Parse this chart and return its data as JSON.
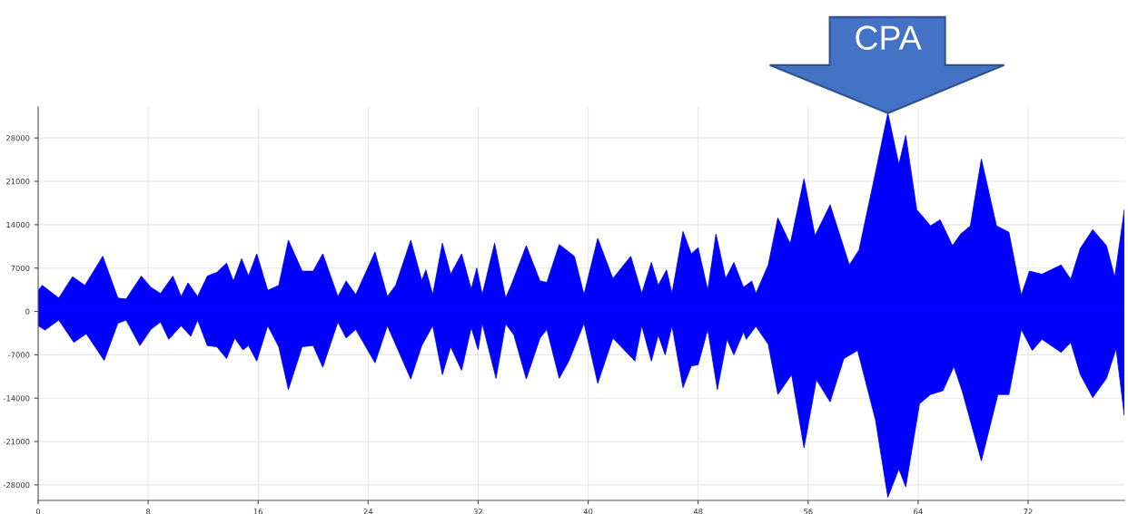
{
  "chart_data": {
    "type": "area",
    "series": [
      {
        "color": "#0000ff",
        "x": [
          0,
          0.3,
          1.5,
          2.5,
          3.4,
          4.7,
          5.8,
          6.4,
          7.5,
          8.2,
          8.9,
          9.8,
          10.4,
          10.9,
          11.6,
          12.3,
          13.0,
          13.7,
          14.2,
          14.8,
          15.3,
          15.9,
          16.7,
          17.5,
          18.2,
          19.2,
          20.0,
          20.7,
          21.8,
          22.4,
          23.1,
          24.5,
          25.4,
          26.0,
          27.1,
          27.9,
          28.2,
          28.7,
          29.4,
          30.0,
          30.8,
          31.5,
          31.9,
          32.3,
          33.2,
          34.0,
          34.4,
          35.5,
          36.5,
          37.0,
          37.9,
          39.0,
          39.7,
          40.7,
          41.8,
          43.1,
          43.9,
          44.6,
          45.1,
          45.7,
          46.1,
          46.9,
          47.5,
          48.0,
          48.7,
          49.3,
          50.0,
          50.6,
          51.3,
          51.9,
          52.2,
          53.1,
          53.8,
          54.7,
          55.7,
          56.5,
          57.6,
          59.0,
          59.7,
          60.9,
          61.8,
          62.6,
          63.1,
          63.9,
          64.3,
          64.9,
          65.6,
          66.5,
          67.1,
          67.8,
          68.6,
          69.7,
          70.6,
          71.5,
          72.1,
          73.0,
          74.4,
          75.1,
          75.8,
          76.7,
          77.7,
          78.3,
          79.0
        ],
        "values": [
          3400,
          4200,
          2150,
          5600,
          4200,
          8900,
          2150,
          2000,
          5700,
          3900,
          2900,
          5700,
          2400,
          4600,
          2400,
          5700,
          6300,
          7800,
          4900,
          8500,
          5700,
          9300,
          3400,
          4200,
          11500,
          6500,
          6500,
          9300,
          2400,
          4900,
          2700,
          9600,
          2400,
          4200,
          11500,
          5000,
          6700,
          2700,
          11000,
          6000,
          9300,
          3600,
          7000,
          2700,
          11000,
          2150,
          4200,
          10600,
          4900,
          4700,
          10800,
          8900,
          2700,
          11800,
          5300,
          8900,
          2900,
          7900,
          4200,
          6700,
          2900,
          12900,
          9300,
          10300,
          3400,
          12500,
          5300,
          7900,
          3900,
          4900,
          2900,
          7500,
          15100,
          10900,
          21400,
          12200,
          17200,
          7500,
          9900,
          22400,
          32000,
          23700,
          28400,
          16400,
          15400,
          13800,
          14800,
          10600,
          12500,
          13800,
          24600,
          13800,
          12800,
          2600,
          6500,
          6000,
          7500,
          5200,
          10200,
          13200,
          10600,
          5500,
          16400
        ]
      },
      {
        "color": "#0000ff",
        "x": [
          0,
          0.5,
          1.5,
          2.6,
          3.5,
          4.8,
          5.8,
          6.4,
          7.4,
          8.2,
          8.9,
          9.5,
          10.4,
          11.1,
          11.6,
          12.3,
          13.0,
          13.7,
          14.3,
          14.9,
          15.3,
          15.9,
          16.7,
          17.5,
          18.2,
          19.2,
          20.0,
          20.7,
          21.8,
          22.4,
          23.1,
          24.5,
          25.4,
          27.1,
          27.9,
          28.2,
          28.7,
          29.4,
          30.0,
          30.8,
          31.5,
          32.0,
          32.3,
          33.3,
          34.0,
          34.6,
          35.5,
          36.5,
          37.0,
          37.9,
          38.6,
          39.7,
          40.7,
          41.8,
          43.4,
          43.9,
          44.6,
          45.1,
          45.6,
          46.1,
          46.9,
          47.5,
          48.0,
          48.7,
          49.4,
          50.1,
          50.6,
          51.3,
          51.5,
          52.2,
          53.1,
          53.8,
          54.8,
          55.7,
          56.6,
          57.6,
          58.6,
          59.6,
          60.9,
          61.8,
          62.6,
          63.1,
          64.1,
          64.9,
          65.8,
          66.6,
          67.2,
          68.6,
          69.8,
          70.6,
          71.5,
          72.3,
          73.0,
          74.4,
          75.1,
          75.8,
          76.7,
          77.7,
          78.4,
          79.0
        ],
        "values": [
          -2300,
          -3000,
          -1400,
          -5000,
          -3600,
          -7900,
          -1900,
          -1400,
          -5500,
          -2900,
          -1700,
          -4500,
          -2300,
          -4000,
          -1400,
          -5500,
          -5700,
          -7600,
          -4300,
          -6200,
          -5500,
          -8000,
          -2300,
          -5700,
          -12600,
          -5700,
          -5500,
          -9000,
          -1700,
          -4300,
          -2900,
          -8300,
          -2300,
          -10900,
          -5500,
          -4300,
          -2300,
          -10200,
          -5700,
          -9500,
          -2600,
          -6200,
          -1900,
          -10800,
          -2000,
          -3800,
          -10900,
          -4300,
          -2900,
          -10800,
          -8000,
          -1900,
          -11600,
          -4300,
          -8000,
          -2300,
          -8000,
          -3800,
          -7000,
          -2300,
          -12300,
          -8800,
          -8600,
          -2900,
          -12600,
          -4500,
          -7000,
          -3300,
          -4500,
          -2400,
          -5300,
          -13400,
          -10200,
          -22000,
          -11000,
          -14600,
          -7600,
          -6300,
          -17500,
          -30000,
          -25400,
          -28300,
          -14900,
          -13400,
          -12800,
          -8900,
          -12800,
          -24100,
          -13400,
          -13400,
          -2900,
          -6300,
          -4500,
          -6600,
          -5000,
          -10200,
          -13900,
          -10800,
          -6000,
          -16800
        ]
      }
    ],
    "xlim": [
      0,
      79
    ],
    "xticks": [
      0,
      8,
      16,
      24,
      32,
      40,
      48,
      56,
      64,
      72
    ],
    "ylim": [
      -30500,
      33000
    ],
    "yticks": [
      -28000,
      -21000,
      -14000,
      -7000,
      0,
      7000,
      14000,
      21000,
      28000
    ],
    "grid": true,
    "annotations": [
      {
        "text": "CPA",
        "x": 61.8,
        "y": 32000
      }
    ]
  }
}
